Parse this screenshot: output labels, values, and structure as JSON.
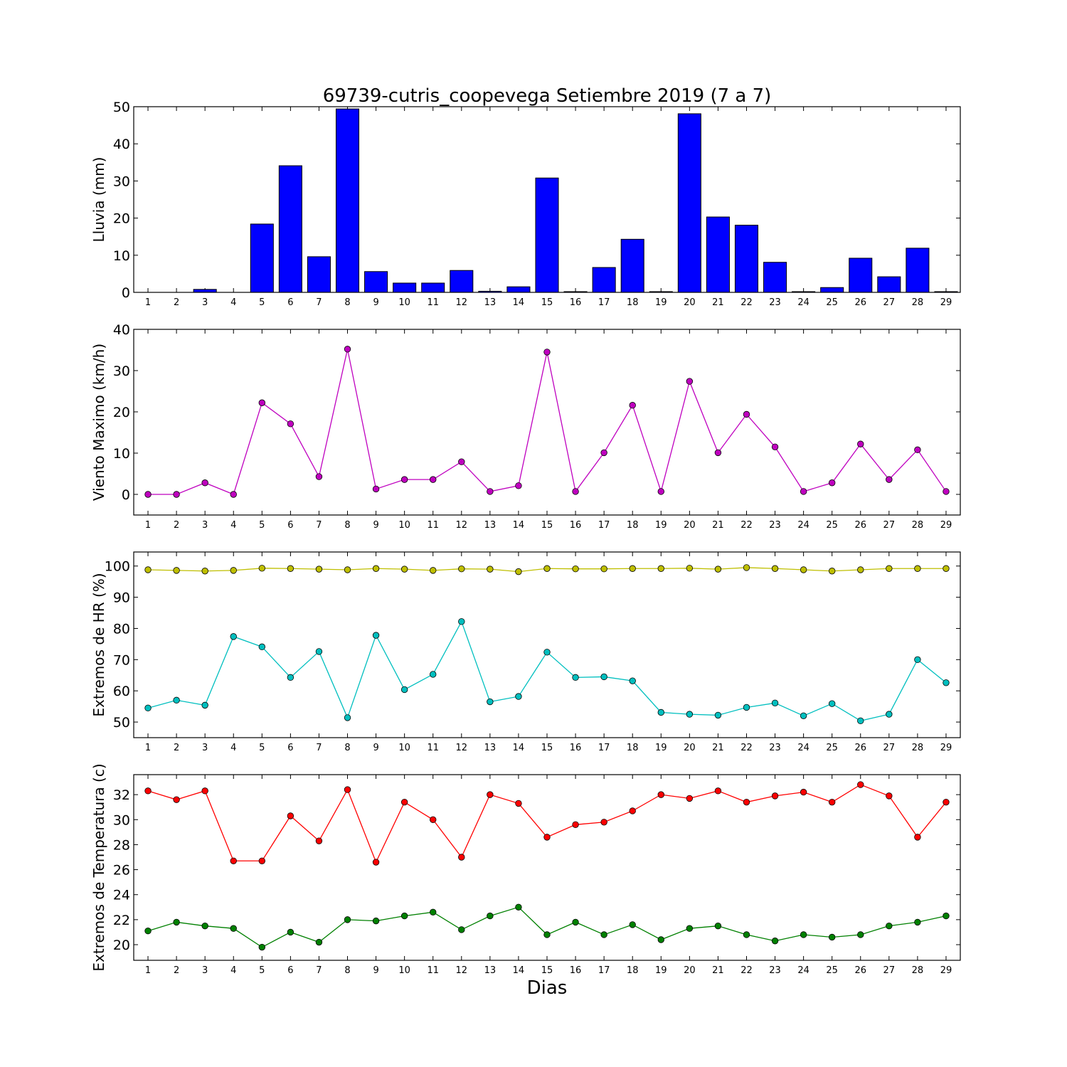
{
  "figure": {
    "title": "69739-cutris_coopevega Setiembre 2019  (7 a 7)",
    "xlabel": "Dias"
  },
  "chart_data": [
    {
      "type": "bar",
      "ylabel": "Lluvia (mm)",
      "categories": [
        "1",
        "2",
        "3",
        "4",
        "5",
        "6",
        "7",
        "8",
        "9",
        "10",
        "11",
        "12",
        "13",
        "14",
        "15",
        "16",
        "17",
        "18",
        "19",
        "20",
        "21",
        "22",
        "23",
        "24",
        "25",
        "26",
        "27",
        "28",
        "29"
      ],
      "ylim": [
        0,
        50
      ],
      "yticks": [
        0,
        10,
        20,
        30,
        40,
        50
      ],
      "grid": false,
      "series": [
        {
          "color": "#0000ff",
          "values": [
            0,
            0,
            0.8,
            0,
            18.4,
            34.1,
            9.6,
            49.4,
            5.6,
            2.5,
            2.5,
            5.9,
            0.3,
            1.5,
            30.8,
            0.2,
            6.7,
            14.3,
            0.2,
            48.1,
            20.3,
            18.1,
            8.1,
            0.2,
            1.3,
            9.2,
            4.2,
            11.9,
            0.2
          ]
        }
      ]
    },
    {
      "type": "line",
      "ylabel": "Viento Maximo (km/h)",
      "x": [
        1,
        2,
        3,
        4,
        5,
        6,
        7,
        8,
        9,
        10,
        11,
        12,
        13,
        14,
        15,
        16,
        17,
        18,
        19,
        20,
        21,
        22,
        23,
        24,
        25,
        26,
        27,
        28,
        29
      ],
      "ylim": [
        -5,
        40
      ],
      "yticks": [
        0,
        10,
        20,
        30,
        40
      ],
      "grid": false,
      "series": [
        {
          "color": "#bf00bf",
          "values": [
            0,
            0,
            2.8,
            0,
            22.2,
            17.1,
            4.3,
            35.2,
            1.3,
            3.6,
            3.6,
            7.9,
            0.7,
            2.1,
            34.5,
            0.7,
            10.1,
            21.6,
            0.7,
            27.4,
            10.1,
            19.4,
            11.5,
            0.7,
            2.8,
            12.2,
            3.6,
            10.8,
            0.7
          ]
        }
      ]
    },
    {
      "type": "line",
      "ylabel": "Extremos de HR (%)",
      "x": [
        1,
        2,
        3,
        4,
        5,
        6,
        7,
        8,
        9,
        10,
        11,
        12,
        13,
        14,
        15,
        16,
        17,
        18,
        19,
        20,
        21,
        22,
        23,
        24,
        25,
        26,
        27,
        28,
        29
      ],
      "ylim": [
        45,
        104.5
      ],
      "yticks": [
        50,
        60,
        70,
        80,
        90,
        100
      ],
      "grid": false,
      "series": [
        {
          "color": "#bfbf00",
          "values": [
            98.8,
            98.6,
            98.4,
            98.6,
            99.3,
            99.2,
            99.0,
            98.8,
            99.2,
            99.0,
            98.6,
            99.1,
            99.0,
            98.2,
            99.2,
            99.1,
            99.1,
            99.2,
            99.2,
            99.3,
            99.0,
            99.5,
            99.2,
            98.8,
            98.4,
            98.8,
            99.2,
            99.2,
            99.2
          ]
        },
        {
          "color": "#00bfbf",
          "values": [
            54.5,
            57.0,
            55.4,
            77.4,
            74.1,
            64.3,
            72.6,
            51.4,
            77.8,
            60.4,
            65.3,
            82.2,
            56.5,
            58.2,
            72.4,
            64.3,
            64.5,
            63.2,
            53.1,
            52.5,
            52.2,
            54.7,
            56.1,
            52.0,
            55.9,
            50.4,
            52.5,
            70.0,
            62.6
          ]
        }
      ]
    },
    {
      "type": "line",
      "ylabel": "Extremos de Temperatura (c)",
      "x": [
        1,
        2,
        3,
        4,
        5,
        6,
        7,
        8,
        9,
        10,
        11,
        12,
        13,
        14,
        15,
        16,
        17,
        18,
        19,
        20,
        21,
        22,
        23,
        24,
        25,
        26,
        27,
        28,
        29
      ],
      "ylim": [
        18.75,
        33.6
      ],
      "yticks": [
        20,
        22,
        24,
        26,
        28,
        30,
        32
      ],
      "grid": false,
      "series": [
        {
          "color": "#ff0000",
          "values": [
            32.3,
            31.6,
            32.3,
            26.7,
            26.7,
            30.3,
            28.3,
            32.4,
            26.6,
            31.4,
            30.0,
            27.0,
            32.0,
            31.3,
            28.6,
            29.6,
            29.8,
            30.7,
            32.0,
            31.7,
            32.3,
            31.4,
            31.9,
            32.2,
            31.4,
            32.8,
            31.9,
            28.6,
            31.4
          ]
        },
        {
          "color": "#008000",
          "values": [
            21.1,
            21.8,
            21.5,
            21.3,
            19.8,
            21.0,
            20.2,
            22.0,
            21.9,
            22.3,
            22.6,
            21.2,
            22.3,
            23.0,
            20.8,
            21.8,
            20.8,
            21.6,
            20.4,
            21.3,
            21.5,
            20.8,
            20.3,
            20.8,
            20.6,
            20.8,
            21.5,
            21.8,
            22.3
          ]
        }
      ]
    }
  ]
}
